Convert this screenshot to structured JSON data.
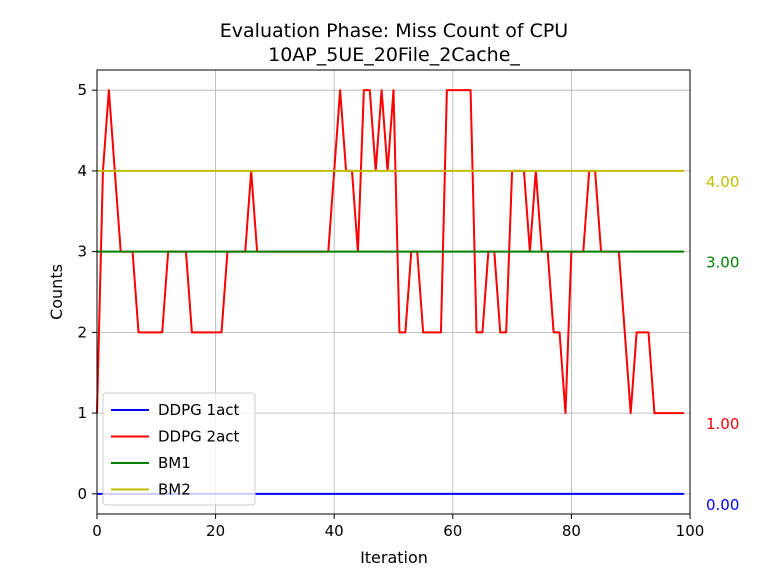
{
  "chart_data": {
    "type": "line",
    "title": "Evaluation Phase: Miss Count of CPU",
    "subtitle": "10AP_5UE_20File_2Cache_",
    "xlabel": "Iteration",
    "ylabel": "Counts",
    "xlim": [
      0,
      100
    ],
    "ylim": [
      -0.25,
      5.25
    ],
    "xticks": [
      0,
      20,
      40,
      60,
      80,
      100
    ],
    "yticks": [
      0,
      1,
      2,
      3,
      4,
      5
    ],
    "grid": true,
    "legend_position": "lower-left",
    "series": [
      {
        "name": "DDPG 1act",
        "color": "#0000ff",
        "x": [
          0,
          99
        ],
        "y": [
          0,
          0
        ]
      },
      {
        "name": "DDPG 2act",
        "color": "#ff0000",
        "x": [
          0,
          1,
          2,
          3,
          4,
          5,
          6,
          7,
          8,
          9,
          10,
          11,
          12,
          13,
          14,
          15,
          16,
          17,
          18,
          19,
          20,
          21,
          22,
          23,
          24,
          25,
          26,
          27,
          28,
          29,
          30,
          31,
          32,
          33,
          34,
          35,
          36,
          37,
          38,
          39,
          40,
          41,
          42,
          43,
          44,
          45,
          46,
          47,
          48,
          49,
          50,
          51,
          52,
          53,
          54,
          55,
          56,
          57,
          58,
          59,
          60,
          61,
          62,
          63,
          64,
          65,
          66,
          67,
          68,
          69,
          70,
          71,
          72,
          73,
          74,
          75,
          76,
          77,
          78,
          79,
          80,
          81,
          82,
          83,
          84,
          85,
          86,
          87,
          88,
          89,
          90,
          91,
          92,
          93,
          94,
          95,
          96,
          97,
          98,
          99
        ],
        "y": [
          1,
          4,
          5,
          4,
          3,
          3,
          3,
          2,
          2,
          2,
          2,
          2,
          3,
          3,
          3,
          3,
          2,
          2,
          2,
          2,
          2,
          2,
          3,
          3,
          3,
          3,
          4,
          3,
          3,
          3,
          3,
          3,
          3,
          3,
          3,
          3,
          3,
          3,
          3,
          3,
          4,
          5,
          4,
          4,
          3,
          5,
          5,
          4,
          5,
          4,
          5,
          2,
          2,
          3,
          3,
          2,
          2,
          2,
          2,
          5,
          5,
          5,
          5,
          5,
          2,
          2,
          3,
          3,
          2,
          2,
          4,
          4,
          4,
          3,
          4,
          3,
          3,
          2,
          2,
          1,
          3,
          3,
          3,
          4,
          4,
          3,
          3,
          3,
          3,
          2,
          1,
          2,
          2,
          2,
          1,
          1,
          1,
          1,
          1,
          1
        ]
      },
      {
        "name": "BM1",
        "color": "#008000",
        "x": [
          0,
          99
        ],
        "y": [
          3,
          3
        ]
      },
      {
        "name": "BM2",
        "color": "#bfbf00",
        "x": [
          0,
          99
        ],
        "y": [
          4,
          4
        ]
      }
    ],
    "annotations": [
      {
        "text": "4.00",
        "y": 4.0,
        "color": "#bfbf00"
      },
      {
        "text": "3.00",
        "y": 3.0,
        "color": "#008000"
      },
      {
        "text": "1.00",
        "y": 1.0,
        "color": "#ff0000"
      },
      {
        "text": "0.00",
        "y": 0.0,
        "color": "#0000ff"
      }
    ]
  }
}
